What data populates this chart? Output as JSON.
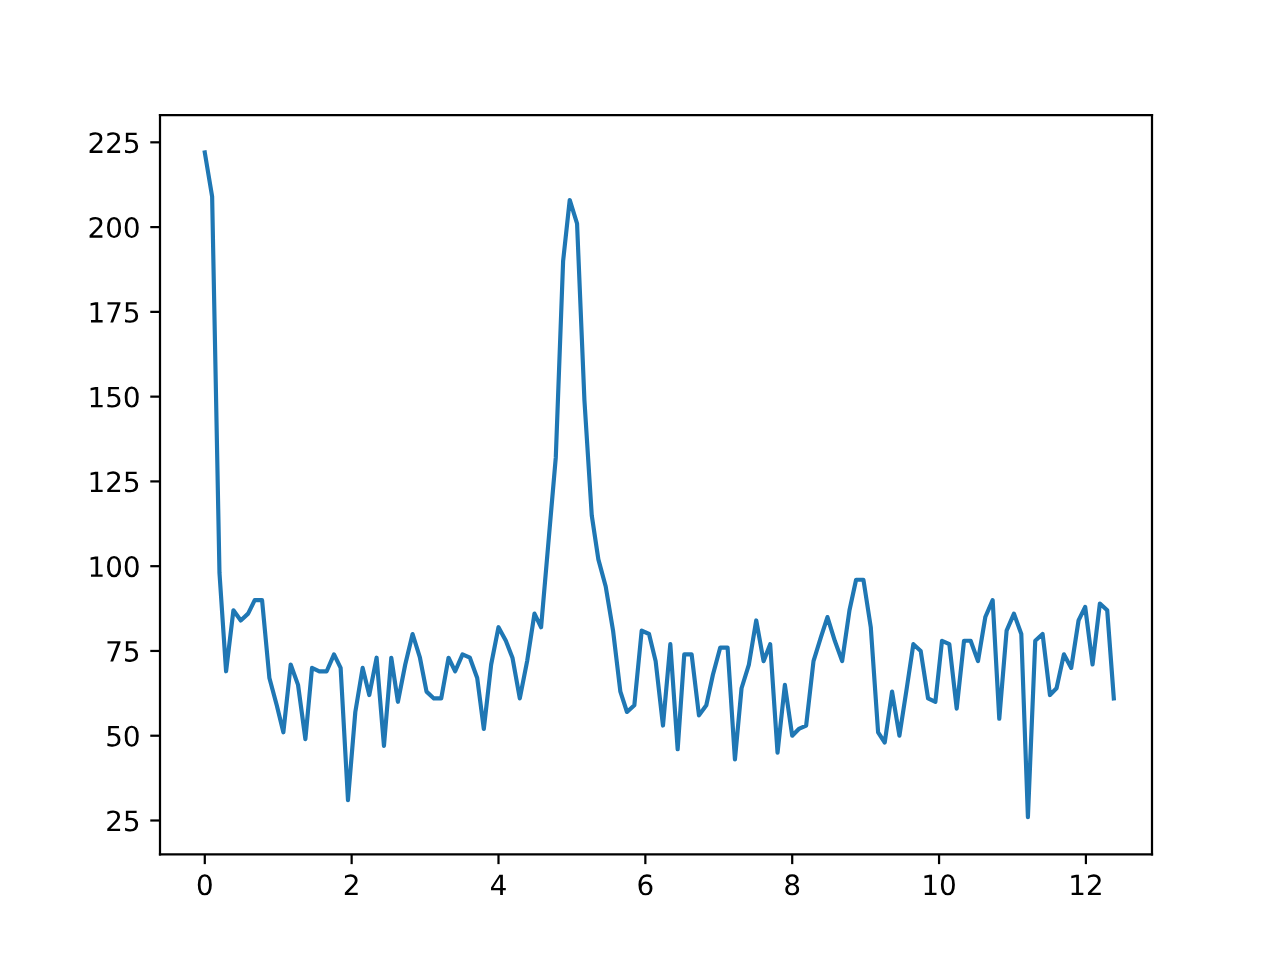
{
  "chart_data": {
    "type": "line",
    "x": [
      0,
      0.1,
      0.2,
      0.29,
      0.39,
      0.49,
      0.59,
      0.68,
      0.78,
      0.88,
      0.98,
      1.07,
      1.17,
      1.27,
      1.37,
      1.46,
      1.56,
      1.66,
      1.76,
      1.85,
      1.95,
      2.05,
      2.15,
      2.24,
      2.34,
      2.44,
      2.54,
      2.63,
      2.73,
      2.83,
      2.93,
      3.02,
      3.12,
      3.22,
      3.32,
      3.41,
      3.51,
      3.61,
      3.71,
      3.8,
      3.9,
      4.0,
      4.1,
      4.19,
      4.29,
      4.39,
      4.49,
      4.58,
      4.68,
      4.78,
      4.88,
      4.97,
      5.07,
      5.17,
      5.27,
      5.36,
      5.46,
      5.56,
      5.66,
      5.75,
      5.85,
      5.95,
      6.05,
      6.14,
      6.24,
      6.34,
      6.44,
      6.53,
      6.63,
      6.73,
      6.83,
      6.92,
      7.02,
      7.12,
      7.22,
      7.31,
      7.41,
      7.51,
      7.61,
      7.7,
      7.8,
      7.9,
      8.0,
      8.09,
      8.19,
      8.29,
      8.39,
      8.48,
      8.58,
      8.68,
      8.78,
      8.87,
      8.97,
      9.07,
      9.17,
      9.26,
      9.36,
      9.46,
      9.56,
      9.65,
      9.75,
      9.85,
      9.95,
      10.04,
      10.14,
      10.24,
      10.34,
      10.43,
      10.53,
      10.63,
      10.73,
      10.82,
      10.92,
      11.02,
      11.12,
      11.21,
      11.31,
      11.41,
      11.51,
      11.6,
      11.7,
      11.8,
      11.9,
      11.99,
      12.09,
      12.19,
      12.29,
      12.38
    ],
    "series": [
      {
        "color": "#1f77b4",
        "values": [
          222,
          209,
          98,
          69,
          87,
          84,
          86,
          90,
          90,
          67,
          59,
          51,
          71,
          65,
          49,
          70,
          69,
          69,
          74,
          70,
          31,
          57,
          70,
          62,
          73,
          47,
          73,
          60,
          71,
          80,
          73,
          63,
          61,
          61,
          73,
          69,
          74,
          73,
          67,
          52,
          71,
          82,
          78,
          73,
          61,
          72,
          86,
          82,
          107,
          132,
          190,
          208,
          201,
          149,
          115,
          102,
          94,
          81,
          63,
          57,
          59,
          81,
          80,
          72,
          53,
          77,
          46,
          74,
          74,
          56,
          59,
          68,
          76,
          76,
          43,
          64,
          71,
          84,
          72,
          77,
          45,
          65,
          50,
          52,
          53,
          72,
          79,
          85,
          78,
          72,
          87,
          96,
          96,
          82,
          51,
          48,
          63,
          50,
          64,
          77,
          75,
          61,
          60,
          78,
          77,
          58,
          78,
          78,
          72,
          85,
          90,
          55,
          81,
          86,
          80,
          26,
          78,
          80,
          62,
          64,
          74,
          70,
          84,
          88,
          71,
          89,
          87,
          61
        ]
      }
    ],
    "xlim": [
      -0.61,
      12.9
    ],
    "ylim": [
      15,
      233
    ],
    "xticks": [
      0,
      2,
      4,
      6,
      8,
      10,
      12
    ],
    "yticks": [
      25,
      50,
      75,
      100,
      125,
      150,
      175,
      200,
      225
    ],
    "grid": false,
    "legend": false
  }
}
